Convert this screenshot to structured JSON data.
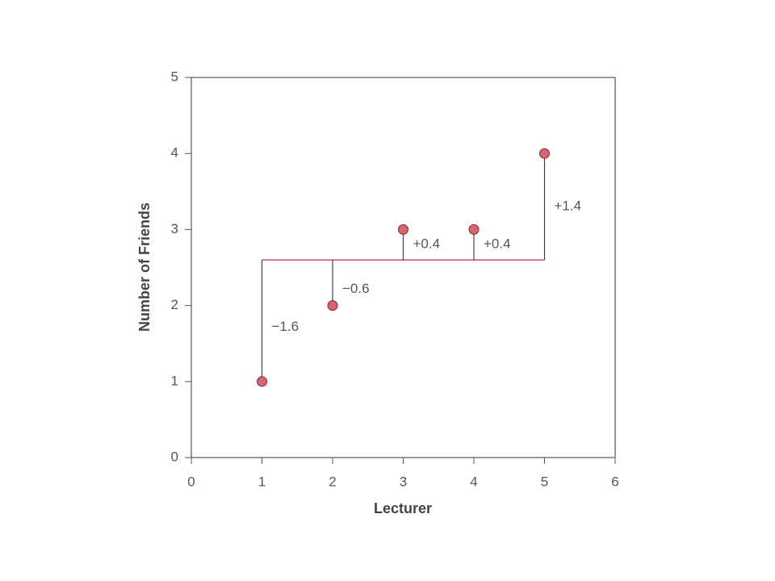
{
  "chart_data": {
    "type": "scatter",
    "x_label": "Lecturer",
    "y_label": "Number of Friends",
    "x": [
      1,
      2,
      3,
      4,
      5
    ],
    "values": [
      1,
      2,
      3,
      3,
      4
    ],
    "mean": 2.6,
    "deviations": {
      "values": [
        -1.6,
        -0.6,
        0.4,
        0.4,
        1.4
      ],
      "value_labels": [
        "−1.6",
        "−0.6",
        "+0.4",
        "+0.4",
        "+1.4"
      ]
    },
    "color": "#d9646e",
    "line_color": "#c9505c",
    "xlim": [
      0,
      6
    ],
    "ylim": [
      0,
      5
    ],
    "xticks": [
      0,
      1,
      2,
      3,
      4,
      5,
      6
    ],
    "yticks": [
      0,
      1,
      2,
      3,
      4,
      5
    ]
  }
}
